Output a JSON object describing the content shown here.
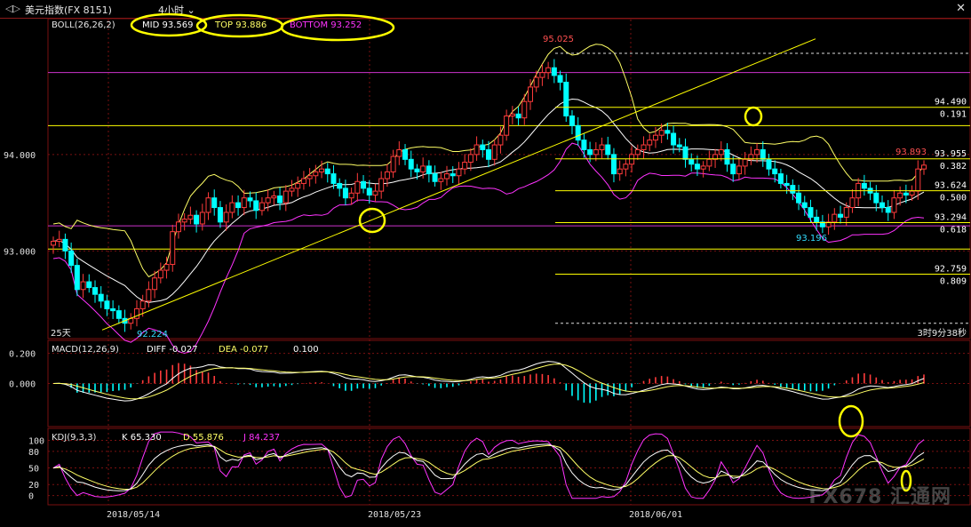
{
  "window": {
    "title": "美元指数(FX 8151)",
    "period": "4小时",
    "menu_icon": "chevron-down-icon",
    "close_icon": "close-icon"
  },
  "colors": {
    "up": "#ff3b3b",
    "down": "#00ffff",
    "boll_mid": "#ffffff",
    "boll_band": "#ffff66",
    "boll_bottom": "#ff33ff",
    "grid": "#7a1010",
    "fib": "#ffff00",
    "trend": "#ffff00",
    "highlight": "#ffff00"
  },
  "boll": {
    "name": "BOLL(26,26,2)",
    "mid_label": "MID 93.569",
    "top_label": "TOP 93.886",
    "bottom_label": "BOTTOM 93.252"
  },
  "macd": {
    "name": "MACD(12,26,9)",
    "diff_label": "DIFF -0.027",
    "dea_label": "DEA -0.077",
    "value_label": "0.100"
  },
  "kdj": {
    "name": "KDJ(9,3,3)",
    "k_label": "K 65.330",
    "d_label": "D 55.876",
    "j_label": "J 84.237"
  },
  "annotations": {
    "high": "95.025",
    "low": "92.224",
    "low2": "93.196",
    "last": "93.893",
    "period_days": "25天",
    "countdown": "3时9分38秒"
  },
  "fib_levels": [
    {
      "price": 94.49,
      "price_label": "94.490",
      "ratio_label": "0.191"
    },
    {
      "price": 93.955,
      "price_label": "93.955",
      "ratio_label": "0.382"
    },
    {
      "price": 93.624,
      "price_label": "93.624",
      "ratio_label": "0.500"
    },
    {
      "price": 93.294,
      "price_label": "93.294",
      "ratio_label": "0.618"
    },
    {
      "price": 92.759,
      "price_label": "92.759",
      "ratio_label": "0.809"
    }
  ],
  "watermark": "FX678 汇通网",
  "chart_data": [
    {
      "type": "candlestick",
      "panel": "price",
      "y_ticks": [
        "94.000",
        "93.000"
      ],
      "ylim": [
        92.1,
        95.4
      ],
      "x_ticks": [
        "2018/05/14",
        "2018/05/23",
        "2018/06/01"
      ],
      "close": [
        93.1,
        93.12,
        93.0,
        92.85,
        92.6,
        92.68,
        92.62,
        92.55,
        92.48,
        92.4,
        92.38,
        92.3,
        92.25,
        92.3,
        92.4,
        92.48,
        92.6,
        92.72,
        92.8,
        92.86,
        93.2,
        93.3,
        93.33,
        93.37,
        93.28,
        93.4,
        93.55,
        93.45,
        93.3,
        93.4,
        93.5,
        93.45,
        93.55,
        93.52,
        93.42,
        93.5,
        93.55,
        93.57,
        93.5,
        93.62,
        93.65,
        93.7,
        93.75,
        93.78,
        93.82,
        93.85,
        93.8,
        93.7,
        93.65,
        93.55,
        93.6,
        93.72,
        93.65,
        93.58,
        93.62,
        93.75,
        93.82,
        93.98,
        94.05,
        93.95,
        93.85,
        93.82,
        93.88,
        93.8,
        93.72,
        93.75,
        93.8,
        93.78,
        93.85,
        93.92,
        94.0,
        94.1,
        94.05,
        93.95,
        94.1,
        94.2,
        94.4,
        94.42,
        94.38,
        94.55,
        94.7,
        94.8,
        94.85,
        94.9,
        94.82,
        94.75,
        94.4,
        94.3,
        94.15,
        94.05,
        94.0,
        94.05,
        94.1,
        94.0,
        93.8,
        93.85,
        93.9,
        94.0,
        94.05,
        94.1,
        94.15,
        94.2,
        94.25,
        94.22,
        94.1,
        94.08,
        93.95,
        93.9,
        93.85,
        93.88,
        93.95,
        94.0,
        94.05,
        93.9,
        93.8,
        93.88,
        93.95,
        94.0,
        94.05,
        93.95,
        93.85,
        93.8,
        93.7,
        93.68,
        93.6,
        93.5,
        93.45,
        93.35,
        93.3,
        93.25,
        93.3,
        93.38,
        93.35,
        93.45,
        93.55,
        93.7,
        93.65,
        93.6,
        93.5,
        93.45,
        93.4,
        93.55,
        93.6,
        93.58,
        93.62,
        93.85,
        93.89
      ]
    },
    {
      "type": "line",
      "panel": "macd",
      "y_ticks": [
        "0.200",
        "0.000"
      ],
      "ylim": [
        -0.28,
        0.28
      ]
    },
    {
      "type": "line",
      "panel": "kdj",
      "y_ticks": [
        "100",
        "80",
        "50",
        "20",
        "0"
      ],
      "ylim": [
        -15,
        120
      ]
    }
  ]
}
